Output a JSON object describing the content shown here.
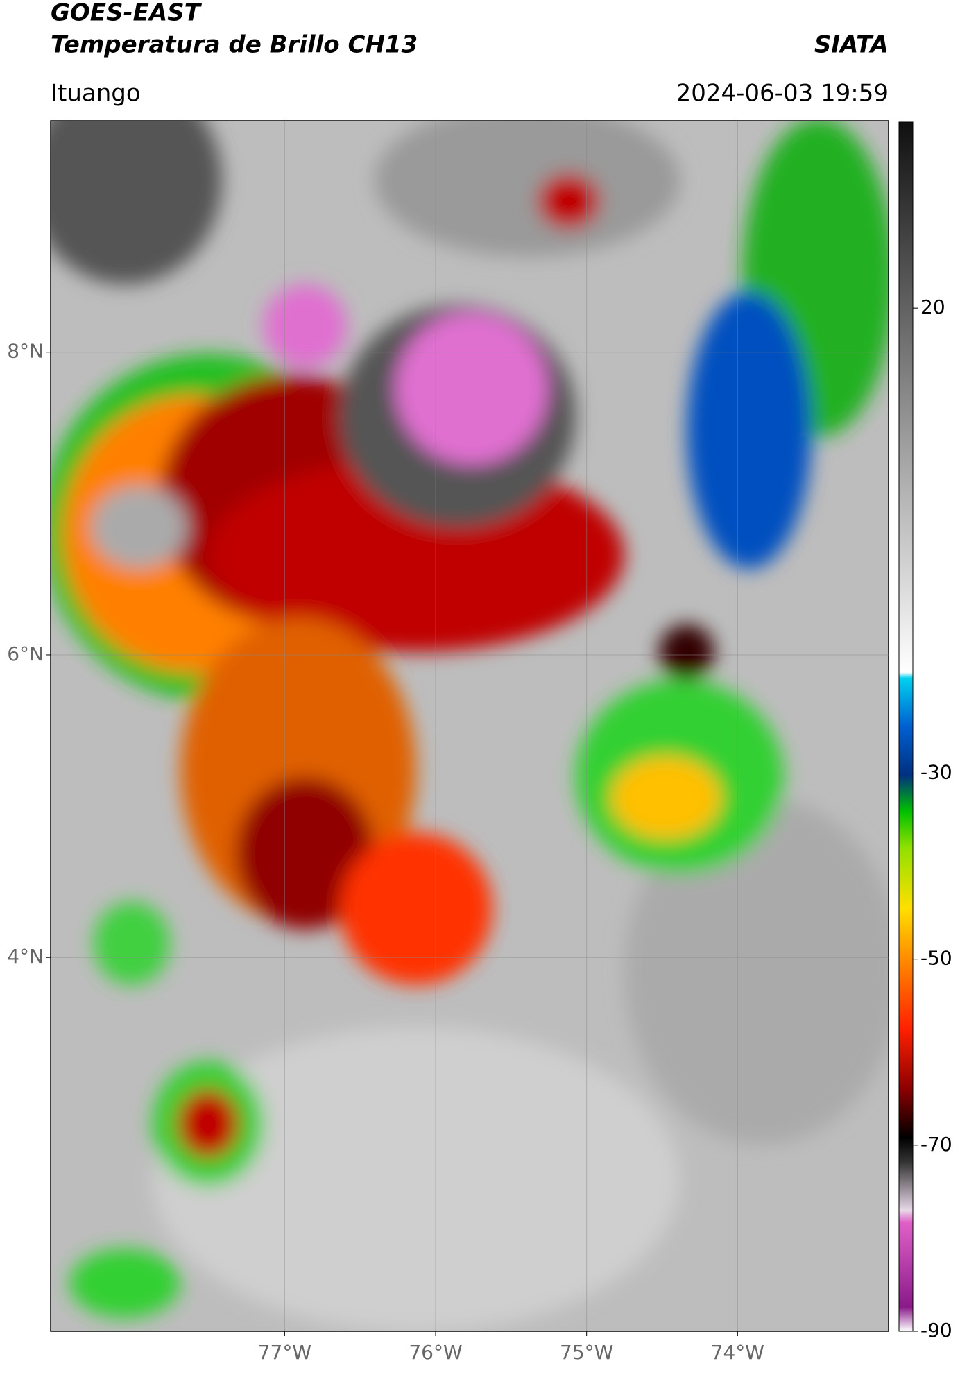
{
  "header": {
    "title": "GOES-EAST",
    "subtitle": "Temperatura de Brillo CH13",
    "source": "SIATA",
    "location": "Ituango",
    "datetime": "2024-06-03 19:59"
  },
  "map": {
    "xlim": [
      -78.55,
      -73.0
    ],
    "ylim": [
      1.53,
      9.53
    ],
    "lat_ticks": [
      {
        "value": 8,
        "label": "8°N"
      },
      {
        "value": 6,
        "label": "6°N"
      },
      {
        "value": 4,
        "label": "4°N"
      }
    ],
    "lon_ticks": [
      {
        "value": -77,
        "label": "77°W"
      },
      {
        "value": -76,
        "label": "76°W"
      },
      {
        "value": -75,
        "label": "75°W"
      },
      {
        "value": -74,
        "label": "74°W"
      }
    ],
    "grid": true
  },
  "colorbar": {
    "lim": [
      -90,
      40
    ],
    "ticks": [
      20,
      -30,
      -50,
      -70,
      -90
    ]
  }
}
